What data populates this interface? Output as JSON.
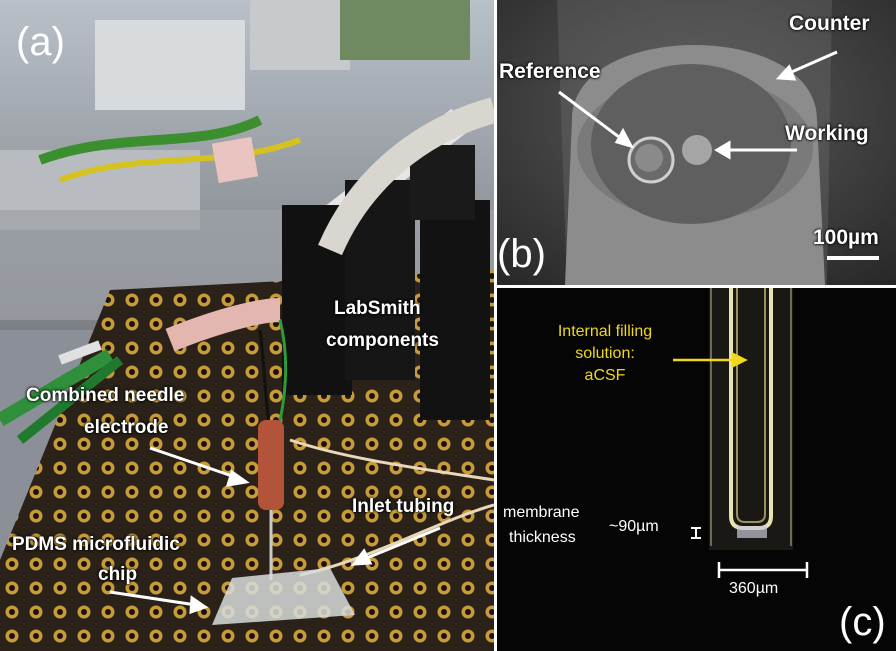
{
  "panel_a": {
    "letter": "(a)",
    "labels": {
      "labsmith_line1": "LabSmith",
      "labsmith_line2": "components",
      "needle_line1": "Combined needle",
      "needle_line2": "electrode",
      "inlet": "Inlet tubing",
      "pdms_line1": "PDMS microfluidic",
      "pdms_line2": "chip"
    }
  },
  "panel_b": {
    "letter": "(b)",
    "labels": {
      "counter": "Counter",
      "reference": "Reference",
      "working": "Working",
      "scale": "100µm"
    }
  },
  "panel_c": {
    "letter": "(c)",
    "labels": {
      "filling_line1": "Internal filling",
      "filling_line2": "solution:",
      "filling_line3": "aCSF",
      "membrane_line1": "membrane",
      "membrane_line2": "thickness",
      "membrane_value": "~90µm",
      "width_scale": "360µm"
    }
  },
  "colors": {
    "label_white": "#ffffff",
    "label_yellow": "#f0d81a",
    "breadboard": "#2a2118",
    "sem_gray": "#8c8c8c"
  }
}
